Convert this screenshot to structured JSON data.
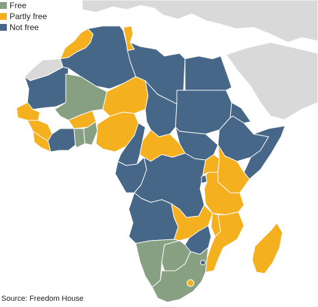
{
  "legend": [
    {
      "key": "free",
      "label": "Free",
      "color": "#86a081"
    },
    {
      "key": "partly",
      "label": "Partly free",
      "color": "#f5b01f"
    },
    {
      "key": "not",
      "label": "Not free",
      "color": "#466788"
    }
  ],
  "source": "Source: Freedom House",
  "colors": {
    "free": "#86a081",
    "partly": "#f5b01f",
    "not": "#466788",
    "background_land": "#d9d9d9",
    "border": "#ffffff"
  }
}
